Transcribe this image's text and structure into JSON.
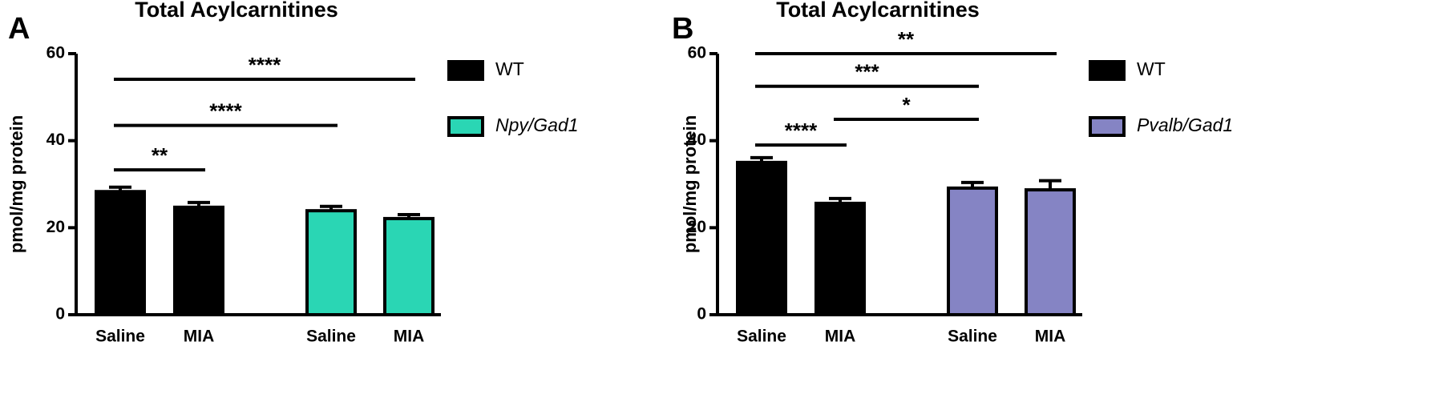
{
  "chart_data": [
    {
      "type": "bar",
      "panel": "A",
      "title": "Total Acylcarnitines",
      "ylabel": "pmol/mg protein",
      "categories": [
        "Saline",
        "MIA",
        "Saline",
        "MIA"
      ],
      "series": [
        {
          "name": "WT",
          "color": "#000000",
          "values": [
            28.3,
            24.7,
            null,
            null
          ],
          "errors": [
            1.0,
            1.1,
            null,
            null
          ]
        },
        {
          "name": "Npy/Gad1",
          "color": "#2ad6b4",
          "values": [
            null,
            null,
            23.9,
            22.1
          ],
          "errors": [
            null,
            null,
            1.0,
            0.9
          ]
        }
      ],
      "ylim": [
        0,
        60
      ],
      "yticks": [
        0,
        20,
        40,
        60
      ],
      "legend": "right",
      "annotations": [
        {
          "label": "**",
          "from": 0,
          "to": 1,
          "y": 33.3
        },
        {
          "label": "****",
          "from": 0,
          "to": 2,
          "y": 43.5
        },
        {
          "label": "****",
          "from": 0,
          "to": 3,
          "y": 54.1
        }
      ]
    },
    {
      "type": "bar",
      "panel": "B",
      "title": "Total Acylcarnitines",
      "ylabel": "pmol/mg protein",
      "categories": [
        "Saline",
        "MIA",
        "Saline",
        "MIA"
      ],
      "series": [
        {
          "name": "WT",
          "color": "#000000",
          "values": [
            35.0,
            25.6,
            null,
            null
          ],
          "errors": [
            1.1,
            1.1,
            null,
            null
          ]
        },
        {
          "name": "Pvalb/Gad1",
          "color": "#8584c4",
          "values": [
            null,
            null,
            29.1,
            28.7
          ],
          "errors": [
            null,
            null,
            1.3,
            2.1
          ]
        }
      ],
      "ylim": [
        0,
        60
      ],
      "yticks": [
        0,
        20,
        40,
        60
      ],
      "legend": "right",
      "annotations": [
        {
          "label": "****",
          "from": 0,
          "to": 1,
          "y": 39.0
        },
        {
          "label": "*",
          "from": 1,
          "to": 2,
          "y": 44.9
        },
        {
          "label": "***",
          "from": 0,
          "to": 2,
          "y": 52.5
        },
        {
          "label": "**",
          "from": 0,
          "to": 3,
          "y": 60.0
        }
      ]
    }
  ]
}
